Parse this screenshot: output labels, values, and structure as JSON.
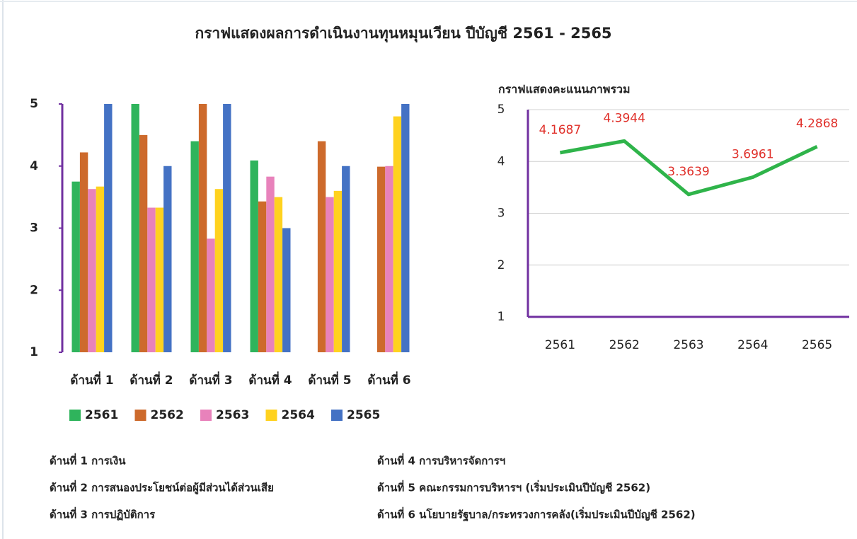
{
  "title": "กราฟแสดงผลการดำเนินงานทุนหมุนเวียน ปีบัญชี 2561 - 2565",
  "chart_data": [
    {
      "type": "bar",
      "categories": [
        "ด้านที่ 1",
        "ด้านที่ 2",
        "ด้านที่ 3",
        "ด้านที่ 4",
        "ด้านที่ 5",
        "ด้านที่ 6"
      ],
      "series": [
        {
          "name": "2561",
          "color": "#2fb45c",
          "values": [
            3.75,
            5,
            4.4,
            4.09,
            null,
            null
          ]
        },
        {
          "name": "2562",
          "color": "#cd6a2c",
          "values": [
            4.22,
            4.5,
            5,
            3.43,
            4.4,
            3.99
          ]
        },
        {
          "name": "2563",
          "color": "#e882bb",
          "values": [
            3.63,
            3.33,
            2.83,
            3.83,
            3.5,
            4.0
          ]
        },
        {
          "name": "2564",
          "color": "#ffd21f",
          "values": [
            3.67,
            3.33,
            3.63,
            3.5,
            3.6,
            4.8
          ]
        },
        {
          "name": "2565",
          "color": "#4472c4",
          "values": [
            5,
            4,
            5,
            3,
            4,
            5
          ]
        }
      ],
      "ylim": [
        1,
        5
      ],
      "yticks": [
        1,
        2,
        3,
        4,
        5
      ],
      "grid": false,
      "legend": "bottom"
    },
    {
      "type": "line",
      "title": "กราฟแสดงคะแนนภาพรวม",
      "categories": [
        "2561",
        "2562",
        "2563",
        "2564",
        "2565"
      ],
      "values": [
        4.1687,
        4.3944,
        3.3639,
        3.6961,
        4.2868
      ],
      "color": "#2fb44a",
      "label_color": "#e0302a",
      "ylim": [
        1,
        5
      ],
      "yticks": [
        1,
        2,
        3,
        4,
        5
      ],
      "grid": true
    }
  ],
  "notes": [
    "ด้านที่ 1 การเงิน",
    "ด้านที่ 2 การสนองประโยชน์ต่อผู้มีส่วนได้ส่วนเสีย",
    "ด้านที่ 3 การปฏิบัติการ",
    "ด้านที่ 4 การบริหารจัดการฯ",
    "ด้านที่ 5 คณะกรรมการบริหารฯ (เริ่มประเมินปีบัญชี 2562)",
    "ด้านที่ 6 นโยบายรัฐบาล/กระทรวงการคลัง(เริ่มประเมินปีบัญชี 2562)"
  ]
}
